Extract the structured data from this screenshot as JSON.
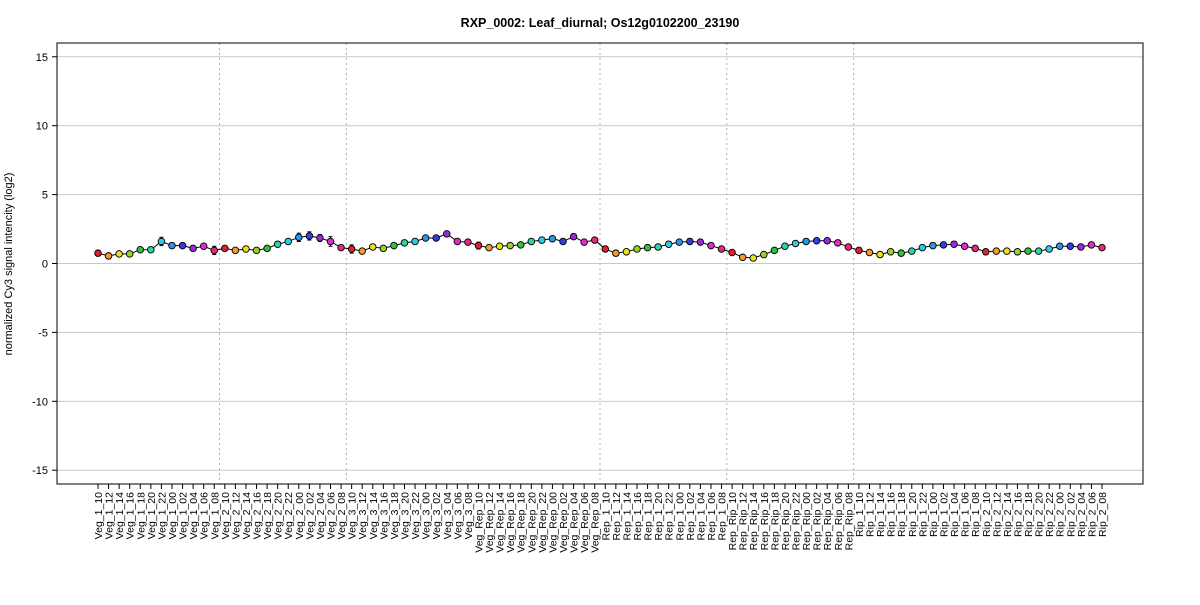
{
  "chart_data": {
    "type": "line",
    "title": "RXP_0002: Leaf_diurnal; Os12g0102200_23190",
    "xlabel": "",
    "ylabel": "normalized Cy3 signal intencity (log2)",
    "ylim": [
      -16,
      16
    ],
    "yticks": [
      -15,
      -10,
      -5,
      0,
      5,
      10,
      15
    ],
    "grid": true,
    "group_separators_after_index": [
      11,
      23,
      47,
      59,
      71
    ],
    "categories": [
      "Veg_1_10",
      "Veg_1_12",
      "Veg_1_14",
      "Veg_1_16",
      "Veg_1_18",
      "Veg_1_20",
      "Veg_1_22",
      "Veg_1_00",
      "Veg_1_02",
      "Veg_1_04",
      "Veg_1_06",
      "Veg_1_08",
      "Veg_2_10",
      "Veg_2_12",
      "Veg_2_14",
      "Veg_2_16",
      "Veg_2_18",
      "Veg_2_20",
      "Veg_2_22",
      "Veg_2_00",
      "Veg_2_02",
      "Veg_2_04",
      "Veg_2_06",
      "Veg_2_08",
      "Veg_3_10",
      "Veg_3_12",
      "Veg_3_14",
      "Veg_3_16",
      "Veg_3_18",
      "Veg_3_20",
      "Veg_3_22",
      "Veg_3_00",
      "Veg_3_02",
      "Veg_3_04",
      "Veg_3_06",
      "Veg_3_08",
      "Veg_Rep_10",
      "Veg_Rep_12",
      "Veg_Rep_14",
      "Veg_Rep_16",
      "Veg_Rep_18",
      "Veg_Rep_20",
      "Veg_Rep_22",
      "Veg_Rep_00",
      "Veg_Rep_02",
      "Veg_Rep_04",
      "Veg_Rep_06",
      "Veg_Rep_08",
      "Rep_1_10",
      "Rep_1_12",
      "Rep_1_14",
      "Rep_1_16",
      "Rep_1_18",
      "Rep_1_20",
      "Rep_1_22",
      "Rep_1_00",
      "Rep_1_02",
      "Rep_1_04",
      "Rep_1_06",
      "Rep_1_08",
      "Rep_Rip_10",
      "Rep_Rip_12",
      "Rep_Rip_14",
      "Rep_Rip_16",
      "Rep_Rip_18",
      "Rep_Rip_20",
      "Rep_Rip_22",
      "Rep_Rip_00",
      "Rep_Rip_02",
      "Rep_Rip_04",
      "Rep_Rip_06",
      "Rep_Rip_08",
      "Rip_1_10",
      "Rip_1_12",
      "Rip_1_14",
      "Rip_1_16",
      "Rip_1_18",
      "Rip_1_20",
      "Rip_1_22",
      "Rip_1_00",
      "Rip_1_02",
      "Rip_1_04",
      "Rip_1_06",
      "Rip_1_08",
      "Rip_2_10",
      "Rip_2_12",
      "Rip_2_14",
      "Rip_2_16",
      "Rip_2_18",
      "Rip_2_20",
      "Rip_2_22",
      "Rip_2_00",
      "Rip_2_02",
      "Rip_2_04",
      "Rip_2_06",
      "Rip_2_08"
    ],
    "series": [
      {
        "values": [
          0.75,
          0.55,
          0.7,
          0.7,
          1.0,
          1.0,
          1.6,
          1.3,
          1.3,
          1.1,
          1.25,
          0.95,
          1.1,
          0.95,
          1.05,
          0.95,
          1.1,
          1.4,
          1.6,
          1.9,
          2.0,
          1.85,
          1.6,
          1.15,
          1.05,
          0.9,
          1.2,
          1.1,
          1.3,
          1.5,
          1.6,
          1.85,
          1.85,
          2.15,
          1.6,
          1.55,
          1.3,
          1.15,
          1.25,
          1.3,
          1.35,
          1.6,
          1.7,
          1.8,
          1.6,
          1.95,
          1.55,
          1.7,
          1.05,
          0.75,
          0.85,
          1.05,
          1.15,
          1.2,
          1.4,
          1.55,
          1.6,
          1.55,
          1.3,
          1.05,
          0.8,
          0.45,
          0.4,
          0.65,
          0.95,
          1.25,
          1.45,
          1.6,
          1.65,
          1.65,
          1.5,
          1.2,
          0.95,
          0.8,
          0.65,
          0.85,
          0.75,
          0.9,
          1.15,
          1.3,
          1.35,
          1.4,
          1.25,
          1.1,
          0.85,
          0.9,
          0.9,
          0.85,
          0.9,
          0.9,
          1.05,
          1.25,
          1.25,
          1.2,
          1.35,
          1.15
        ],
        "errors": [
          0.1,
          0.05,
          0.05,
          0.05,
          0.1,
          0.1,
          0.3,
          0.15,
          0.1,
          0.1,
          0.1,
          0.3,
          0.1,
          0.1,
          0.1,
          0.1,
          0.1,
          0.15,
          0.15,
          0.3,
          0.3,
          0.25,
          0.35,
          0.1,
          0.3,
          0.15,
          0.1,
          0.1,
          0.1,
          0.15,
          0.1,
          0.15,
          0.15,
          0.15,
          0.15,
          0.1,
          0.25,
          0.1,
          0.1,
          0.1,
          0.1,
          0.1,
          0.1,
          0.1,
          0.1,
          0.15,
          0.1,
          0.1,
          0.15,
          0.1,
          0.1,
          0.1,
          0.1,
          0.1,
          0.1,
          0.1,
          0.1,
          0.1,
          0.1,
          0.1,
          0.1,
          0.1,
          0.1,
          0.1,
          0.1,
          0.1,
          0.1,
          0.1,
          0.1,
          0.1,
          0.1,
          0.1,
          0.1,
          0.1,
          0.1,
          0.1,
          0.1,
          0.1,
          0.1,
          0.1,
          0.1,
          0.1,
          0.1,
          0.1,
          0.1,
          0.1,
          0.1,
          0.1,
          0.1,
          0.1,
          0.1,
          0.1,
          0.1,
          0.1,
          0.1,
          0.1
        ]
      }
    ],
    "colors": [
      "#e0202e",
      "#f59a2a",
      "#e8e21c",
      "#9ad02a",
      "#2ec43a",
      "#2bd4a6",
      "#2ccce6",
      "#2a96e8",
      "#3a3ae6",
      "#9a2ae0",
      "#e62ad0",
      "#e62a7a"
    ]
  }
}
